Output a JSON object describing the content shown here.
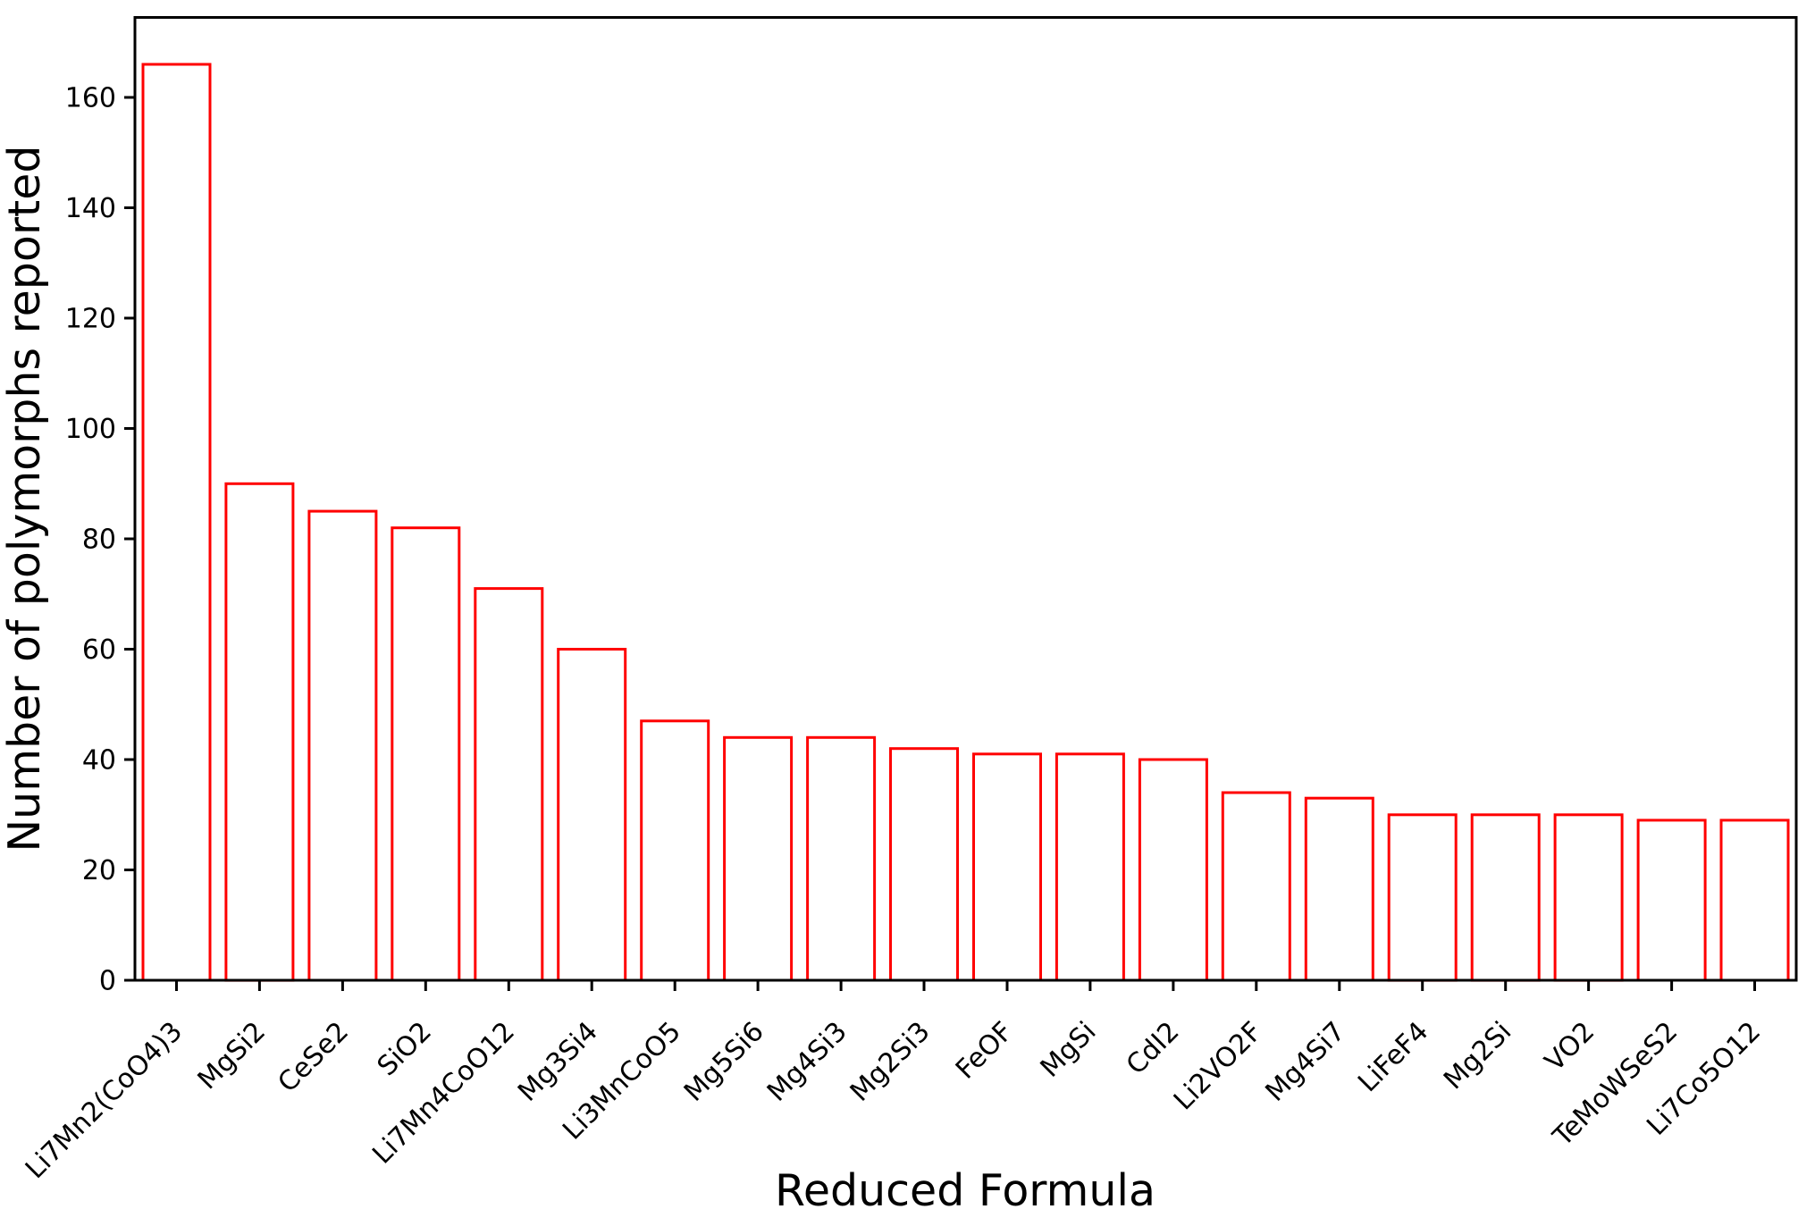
{
  "chart_data": {
    "type": "bar",
    "title": "",
    "xlabel": "Reduced Formula",
    "ylabel": "Number of polymorphs reported",
    "categories": [
      "Li7Mn2(CoO4)3",
      "MgSi2",
      "CeSe2",
      "SiO2",
      "Li7Mn4CoO12",
      "Mg3Si4",
      "Li3MnCoO5",
      "Mg5Si6",
      "Mg4Si3",
      "Mg2Si3",
      "FeOF",
      "MgSi",
      "CdI2",
      "Li2VO2F",
      "Mg4Si7",
      "LiFeF4",
      "Mg2Si",
      "VO2",
      "TeMoWSeS2",
      "Li7Co5O12"
    ],
    "values": [
      166,
      90,
      85,
      82,
      71,
      60,
      47,
      44,
      44,
      42,
      41,
      41,
      40,
      34,
      33,
      30,
      30,
      30,
      29,
      29
    ],
    "yticks": [
      0,
      20,
      40,
      60,
      80,
      100,
      120,
      140,
      160
    ],
    "ylim": [
      0,
      174.6
    ],
    "grid": false,
    "legend_position": "none",
    "x_tick_label_rotation_deg": 45,
    "colors": {
      "bar_edge": "#ff0000",
      "bar_fill": "#ffffff",
      "axis": "#000000",
      "background": "#ffffff"
    }
  }
}
